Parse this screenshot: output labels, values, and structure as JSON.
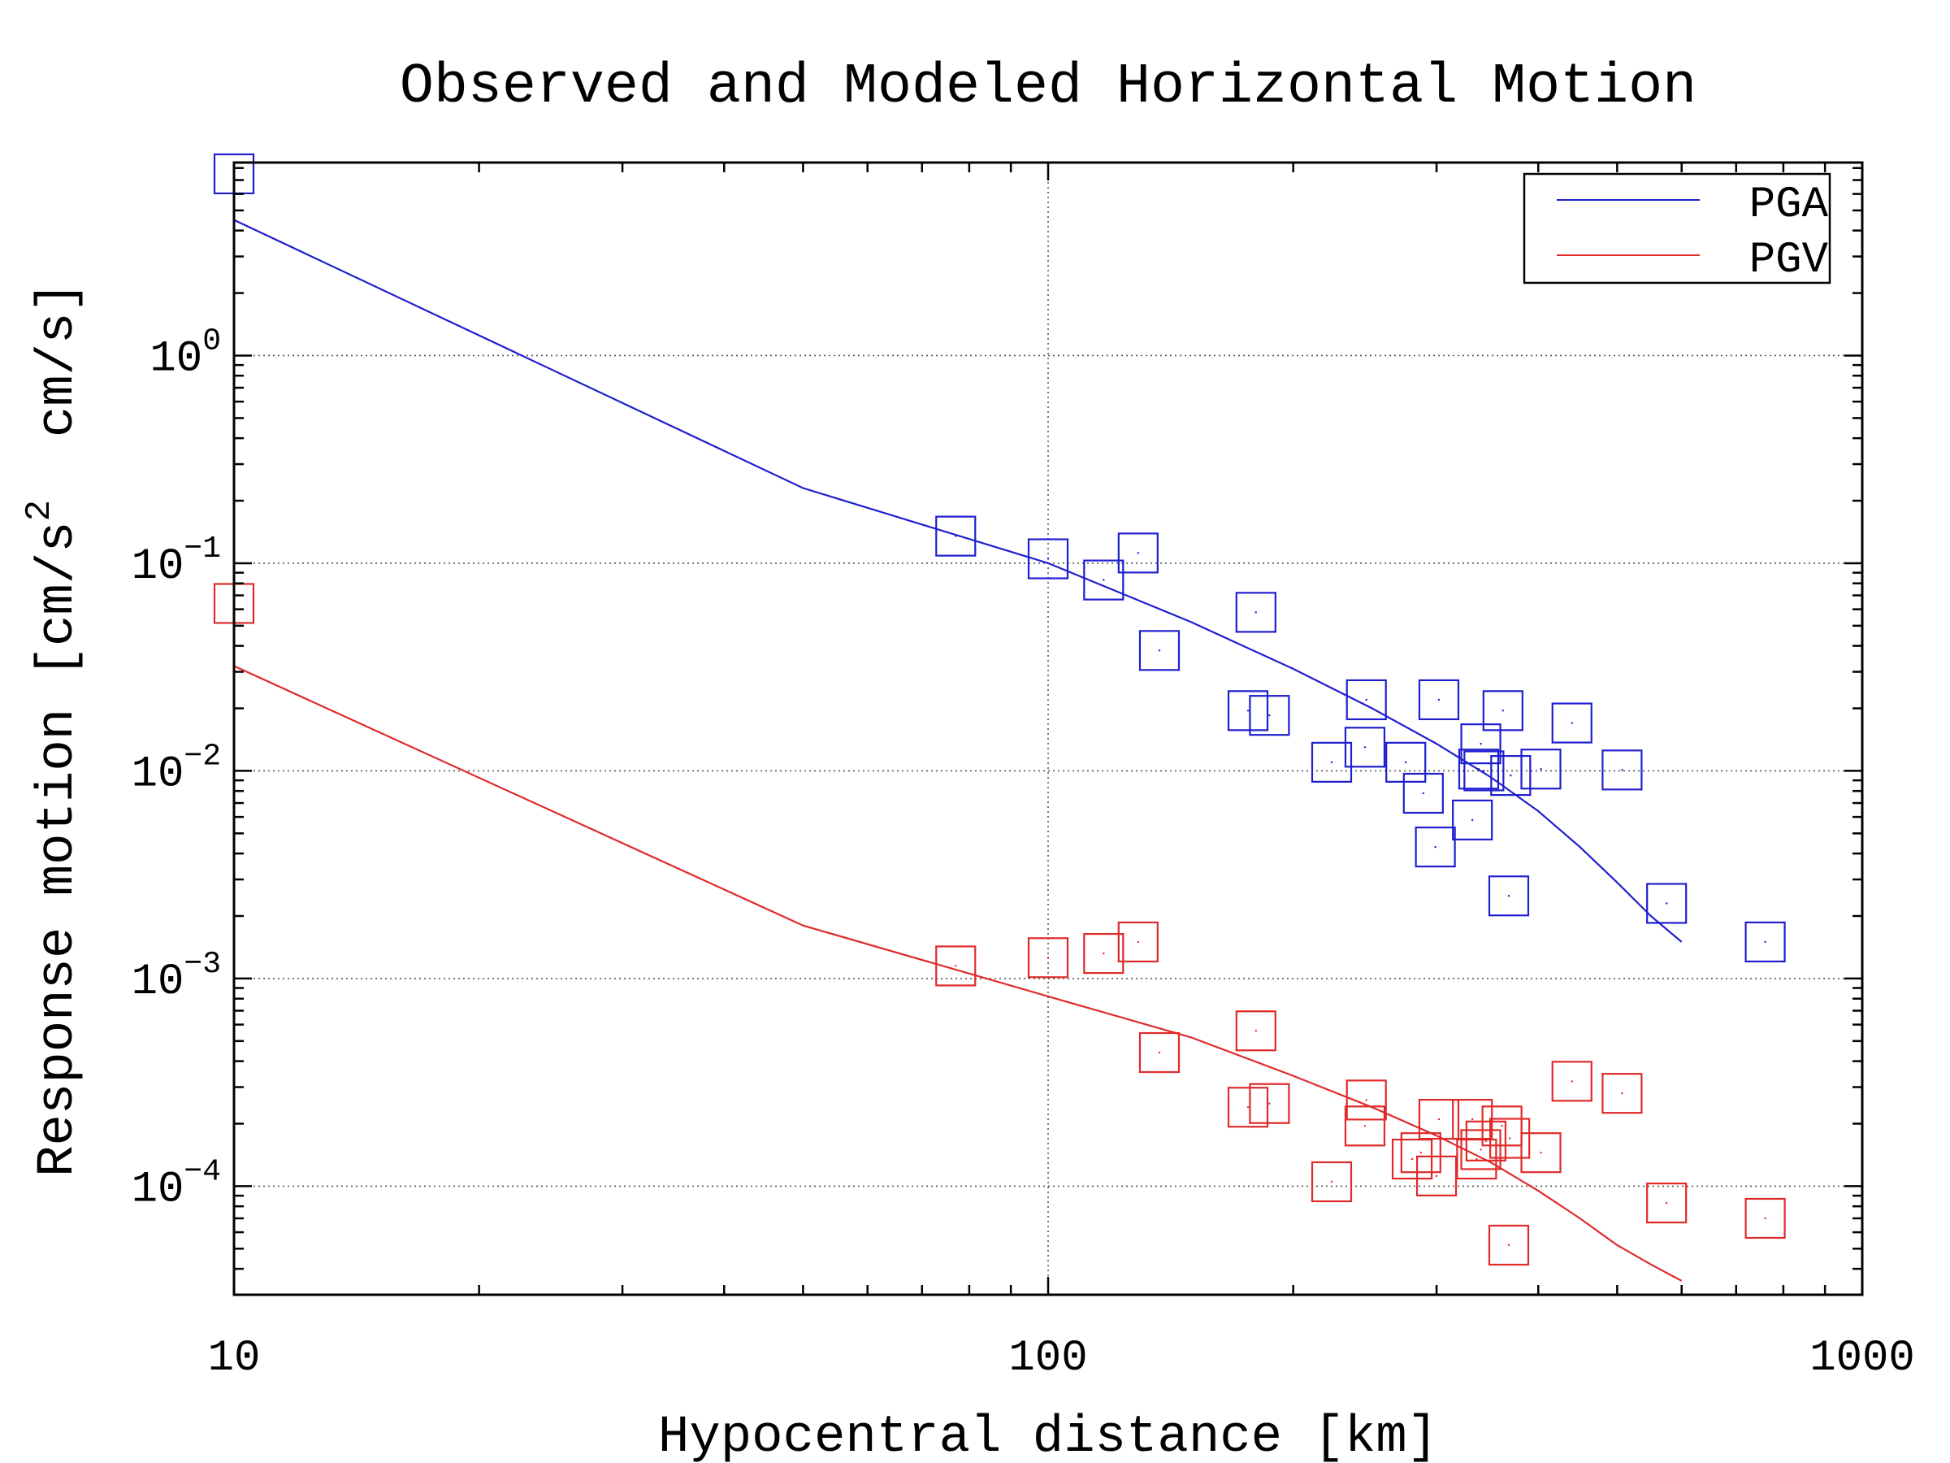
{
  "chart_data": {
    "type": "scatter",
    "title": "Observed and Modeled Horizontal Motion",
    "xlabel": "Hypocentral distance [km]",
    "ylabel": {
      "main": "Response motion [cm/s",
      "sup": "2",
      "tail": "  cm/s]"
    },
    "x_scale": "log",
    "y_scale": "log",
    "xlim": [
      10,
      1000
    ],
    "ylim": [
      3e-05,
      8.5
    ],
    "x_ticks": [
      {
        "value": 10,
        "label": "10"
      },
      {
        "value": 100,
        "label": "100"
      },
      {
        "value": 1000,
        "label": "1000"
      }
    ],
    "y_ticks": [
      {
        "value": 1,
        "base": "10",
        "exp": "0"
      },
      {
        "value": 0.1,
        "base": "10",
        "exp": "−1"
      },
      {
        "value": 0.01,
        "base": "10",
        "exp": "−2"
      },
      {
        "value": 0.001,
        "base": "10",
        "exp": "−3"
      },
      {
        "value": 0.0001,
        "base": "10",
        "exp": "−4"
      }
    ],
    "grid": {
      "x_major": [
        100
      ],
      "y_major": [
        1,
        0.1,
        0.01,
        0.001,
        0.0001
      ],
      "style": "dotted"
    },
    "legend": {
      "position": "top-right",
      "entries": [
        {
          "name": "PGA",
          "color": "#1f1fd0"
        },
        {
          "name": "PGV",
          "color": "#e02a2a"
        }
      ]
    },
    "series": [
      {
        "name": "PGA",
        "color": "#1f1fd0",
        "model_x": [
          10,
          50,
          100,
          150,
          200,
          250,
          300,
          350,
          400,
          450,
          500,
          550,
          600
        ],
        "model_y": [
          4.5,
          0.23,
          0.1,
          0.052,
          0.031,
          0.02,
          0.0135,
          0.0093,
          0.0064,
          0.0043,
          0.0029,
          0.002,
          0.0015
        ],
        "observed": [
          [
            10,
            7.5
          ],
          [
            77,
            0.135
          ],
          [
            100,
            0.105
          ],
          [
            117,
            0.083
          ],
          [
            129,
            0.112
          ],
          [
            137,
            0.038
          ],
          [
            180,
            0.058
          ],
          [
            176,
            0.0195
          ],
          [
            187,
            0.0185
          ],
          [
            223,
            0.011
          ],
          [
            245,
            0.013
          ],
          [
            246,
            0.022
          ],
          [
            275,
            0.011
          ],
          [
            289,
            0.0078
          ],
          [
            299,
            0.0043
          ],
          [
            302,
            0.022
          ],
          [
            332,
            0.0058
          ],
          [
            340,
            0.0135
          ],
          [
            338,
            0.0102
          ],
          [
            343,
            0.01
          ],
          [
            362,
            0.0195
          ],
          [
            370,
            0.0095
          ],
          [
            368,
            0.0025
          ],
          [
            403,
            0.0102
          ],
          [
            440,
            0.017
          ],
          [
            507,
            0.0101
          ],
          [
            575,
            0.0023
          ],
          [
            760,
            0.0015
          ]
        ]
      },
      {
        "name": "PGV",
        "color": "#e02a2a",
        "model_x": [
          10,
          50,
          100,
          150,
          200,
          250,
          300,
          350,
          400,
          450,
          500,
          550,
          600
        ],
        "model_y": [
          0.032,
          0.0018,
          0.00082,
          0.00052,
          0.00034,
          0.00024,
          0.000175,
          0.00013,
          9.5e-05,
          7e-05,
          5.2e-05,
          4.2e-05,
          3.5e-05
        ],
        "observed": [
          [
            10,
            0.064
          ],
          [
            77,
            0.00115
          ],
          [
            100,
            0.00126
          ],
          [
            117,
            0.00132
          ],
          [
            129,
            0.0015
          ],
          [
            137,
            0.00044
          ],
          [
            180,
            0.00056
          ],
          [
            176,
            0.00024
          ],
          [
            187,
            0.00025
          ],
          [
            223,
            0.000105
          ],
          [
            245,
            0.000195
          ],
          [
            246,
            0.00026
          ],
          [
            280,
            0.000135
          ],
          [
            287,
            0.000145
          ],
          [
            300,
            0.000112
          ],
          [
            302,
            0.00021
          ],
          [
            332,
            0.00021
          ],
          [
            336,
            0.000135
          ],
          [
            340,
            0.00015
          ],
          [
            345,
            0.000165
          ],
          [
            361,
            0.000195
          ],
          [
            369,
            0.00017
          ],
          [
            368,
            5.2e-05
          ],
          [
            403,
            0.000145
          ],
          [
            440,
            0.00032
          ],
          [
            507,
            0.00028
          ],
          [
            575,
            8.3e-05
          ],
          [
            760,
            7e-05
          ]
        ]
      }
    ]
  }
}
